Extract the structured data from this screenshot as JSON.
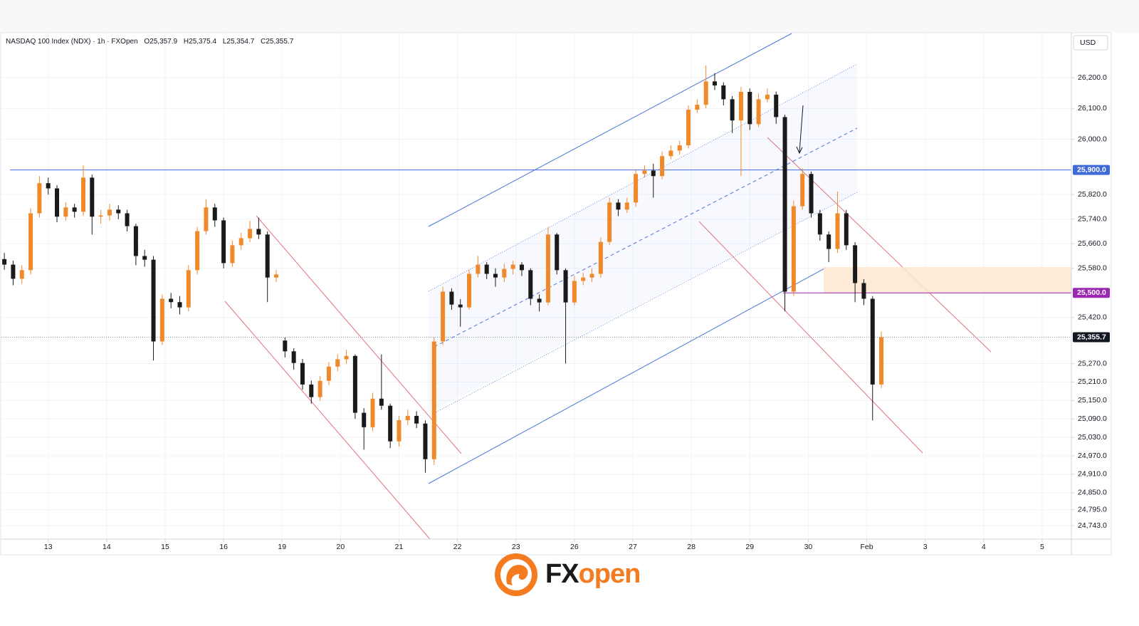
{
  "chart_data": {
    "type": "candlestick",
    "title": "NASDAQ 100 Index (NDX) · 1h · FXOpen",
    "ohlc_legend": [
      "O25,357.9",
      "H25,375.4",
      "L25,354.7",
      "C25,355.7"
    ],
    "currency": "USD",
    "up_color": "#f0892a",
    "down_color": "#1a1a1a",
    "x": [
      -0.75,
      -0.6,
      -0.45,
      -0.3,
      -0.15,
      0,
      0.15,
      0.3,
      0.45,
      0.6,
      0.75,
      0.9,
      1.05,
      1.2,
      1.35,
      1.5,
      1.65,
      1.8,
      1.95,
      2.1,
      2.25,
      2.4,
      2.55,
      2.7,
      2.85,
      3,
      3.15,
      3.3,
      3.45,
      3.6,
      3.75,
      3.9,
      4.05,
      4.2,
      4.35,
      4.5,
      4.65,
      4.8,
      4.95,
      5.1,
      5.25,
      5.4,
      5.55,
      5.7,
      5.85,
      6,
      6.15,
      6.3,
      6.45,
      6.6,
      6.75,
      6.9,
      7.05,
      7.2,
      7.35,
      7.5,
      7.65,
      7.8,
      7.95,
      8.1,
      8.25,
      8.4,
      8.55,
      8.7,
      8.85,
      9,
      9.15,
      9.3,
      9.45,
      9.6,
      9.75,
      9.9,
      10.05,
      10.2,
      10.35,
      10.5,
      10.65,
      10.8,
      10.95,
      11.1,
      11.25,
      11.4,
      11.55,
      11.7,
      11.85,
      12,
      12.15,
      12.3,
      12.45,
      12.6,
      12.75,
      12.9,
      13.05,
      13.2,
      13.35,
      13.5,
      13.65,
      13.8,
      13.95,
      14.1,
      14.25
    ],
    "open": [
      25610,
      25592,
      25546,
      25574,
      25759,
      25857,
      25840,
      25748,
      25778,
      25764,
      25875,
      25748,
      25752,
      25771,
      25759,
      25717,
      25620,
      25608,
      25342,
      25481,
      25470,
      25453,
      25574,
      25701,
      25778,
      25736,
      25597,
      25655,
      25678,
      25708,
      25690,
      25550,
      25345,
      25310,
      25272,
      25202,
      25161,
      25214,
      25260,
      25284,
      25295,
      25110,
      25063,
      25156,
      25133,
      25017,
      25086,
      25100,
      25075,
      24959,
      25342,
      25504,
      25462,
      25453,
      25562,
      25592,
      25562,
      25550,
      25578,
      25592,
      25574,
      25481,
      25469,
      25690,
      25574,
      25469,
      25539,
      25550,
      25562,
      25666,
      25794,
      25771,
      25794,
      25887,
      25898,
      25880,
      25945,
      25963,
      25980,
      26096,
      26112,
      26188,
      26175,
      26130,
      26061,
      26154,
      26049,
      26130,
      26145,
      26072,
      25504,
      25782,
      25887,
      25759,
      25690,
      25643,
      25759,
      25655,
      25532,
      25481,
      25202
    ],
    "high": [
      25630,
      25605,
      25590,
      25775,
      25880,
      25875,
      25850,
      25795,
      25790,
      25915,
      25885,
      25770,
      25790,
      25785,
      25770,
      25725,
      25640,
      25620,
      25495,
      25500,
      25490,
      25590,
      25715,
      25805,
      25790,
      25745,
      25670,
      25695,
      25735,
      25745,
      25700,
      25575,
      25355,
      25320,
      25285,
      25215,
      25230,
      25275,
      25300,
      25315,
      25300,
      25125,
      25175,
      25300,
      25140,
      25100,
      25120,
      25115,
      25085,
      25355,
      25520,
      25515,
      25480,
      25575,
      25620,
      25600,
      25580,
      25595,
      25605,
      25600,
      25580,
      25495,
      25715,
      25695,
      25580,
      25555,
      25565,
      25580,
      25680,
      25810,
      25805,
      25810,
      25900,
      25915,
      25920,
      25960,
      25980,
      25995,
      26110,
      26130,
      26240,
      26215,
      26185,
      26140,
      26170,
      26165,
      26150,
      26165,
      26155,
      26080,
      25800,
      25905,
      25895,
      25770,
      25700,
      25830,
      25770,
      25665,
      25545,
      25490,
      25375
    ],
    "low": [
      25575,
      25525,
      25530,
      25560,
      25745,
      25820,
      25730,
      25735,
      25745,
      25750,
      25690,
      25725,
      25735,
      25740,
      25700,
      25590,
      25585,
      25280,
      25330,
      25450,
      25430,
      25440,
      25560,
      25690,
      25715,
      25580,
      25585,
      25640,
      25665,
      25675,
      25470,
      25535,
      25290,
      25250,
      25185,
      25140,
      25150,
      25200,
      25245,
      25270,
      25090,
      24990,
      25050,
      25120,
      24995,
      25000,
      25070,
      25060,
      24915,
      24940,
      25330,
      25445,
      25390,
      25445,
      25550,
      25545,
      25520,
      25535,
      25560,
      25555,
      25460,
      25440,
      25460,
      25560,
      25270,
      25460,
      25525,
      25535,
      25550,
      25655,
      25750,
      25760,
      25780,
      25875,
      25810,
      25870,
      25935,
      25950,
      25970,
      26085,
      26100,
      26160,
      26110,
      26020,
      25880,
      26030,
      26040,
      26120,
      26050,
      25440,
      25490,
      25770,
      25745,
      25670,
      25600,
      25630,
      25640,
      25470,
      25460,
      25085,
      25190
    ],
    "close": [
      25592,
      25546,
      25574,
      25759,
      25857,
      25840,
      25748,
      25778,
      25764,
      25875,
      25748,
      25752,
      25771,
      25759,
      25717,
      25620,
      25608,
      25342,
      25481,
      25470,
      25453,
      25574,
      25701,
      25778,
      25736,
      25597,
      25655,
      25678,
      25708,
      25690,
      25550,
      25560,
      25310,
      25272,
      25202,
      25161,
      25214,
      25260,
      25284,
      25295,
      25110,
      25063,
      25156,
      25133,
      25017,
      25086,
      25100,
      25075,
      24959,
      25342,
      25504,
      25462,
      25453,
      25562,
      25592,
      25562,
      25550,
      25578,
      25592,
      25574,
      25481,
      25469,
      25690,
      25574,
      25469,
      25539,
      25550,
      25562,
      25666,
      25794,
      25771,
      25794,
      25887,
      25898,
      25880,
      25945,
      25963,
      25980,
      26096,
      26112,
      26188,
      26175,
      26130,
      26061,
      26154,
      26049,
      26130,
      26145,
      26072,
      25504,
      25782,
      25887,
      25759,
      25690,
      25643,
      25759,
      25655,
      25532,
      25481,
      25202,
      25356
    ],
    "xlim": [
      -0.8,
      17.5
    ],
    "xticks": [
      {
        "value": 0,
        "label": "13"
      },
      {
        "value": 1,
        "label": "14"
      },
      {
        "value": 2,
        "label": "15"
      },
      {
        "value": 3,
        "label": "16"
      },
      {
        "value": 4,
        "label": "19"
      },
      {
        "value": 5,
        "label": "20"
      },
      {
        "value": 6,
        "label": "21"
      },
      {
        "value": 7,
        "label": "22"
      },
      {
        "value": 8,
        "label": "23"
      },
      {
        "value": 9,
        "label": "26"
      },
      {
        "value": 10,
        "label": "27"
      },
      {
        "value": 11,
        "label": "28"
      },
      {
        "value": 12,
        "label": "29"
      },
      {
        "value": 13,
        "label": "30"
      },
      {
        "value": 14,
        "label": "Feb"
      },
      {
        "value": 15,
        "label": "3"
      },
      {
        "value": 16,
        "label": "4"
      },
      {
        "value": 17,
        "label": "5"
      }
    ],
    "ylim": [
      24699,
      26344
    ],
    "yticks": [
      {
        "value": 26200,
        "label": "26,200.0"
      },
      {
        "value": 26100,
        "label": "26,100.0"
      },
      {
        "value": 26000,
        "label": "26,000.0"
      },
      {
        "value": 25820,
        "label": "25,820.0"
      },
      {
        "value": 25740,
        "label": "25,740.0"
      },
      {
        "value": 25660,
        "label": "25,660.0"
      },
      {
        "value": 25580,
        "label": "25,580.0"
      },
      {
        "value": 25420,
        "label": "25,420.0"
      },
      {
        "value": 25270,
        "label": "25,270.0"
      },
      {
        "value": 25210,
        "label": "25,210.0"
      },
      {
        "value": 25150,
        "label": "25,150.0"
      },
      {
        "value": 25090,
        "label": "25,090.0"
      },
      {
        "value": 25030,
        "label": "25,030.0"
      },
      {
        "value": 24970,
        "label": "24,970.0"
      },
      {
        "value": 24910,
        "label": "24,910.0"
      },
      {
        "value": 24850,
        "label": "24,850.0"
      },
      {
        "value": 24795,
        "label": "24,795.0"
      },
      {
        "value": 24743,
        "label": "24,743.0"
      }
    ],
    "grid": true,
    "levels": [
      {
        "value": 25900,
        "label": "25,900.0",
        "color": "#3f6ad8"
      },
      {
        "value": 25500,
        "label": "25,500.0",
        "color": "#9c27b0"
      }
    ],
    "last_price": {
      "value": 25355.7,
      "label": "25,355.7",
      "color": "#131722"
    }
  },
  "logo": {
    "dark_text": "FX",
    "orange_text": "open"
  }
}
